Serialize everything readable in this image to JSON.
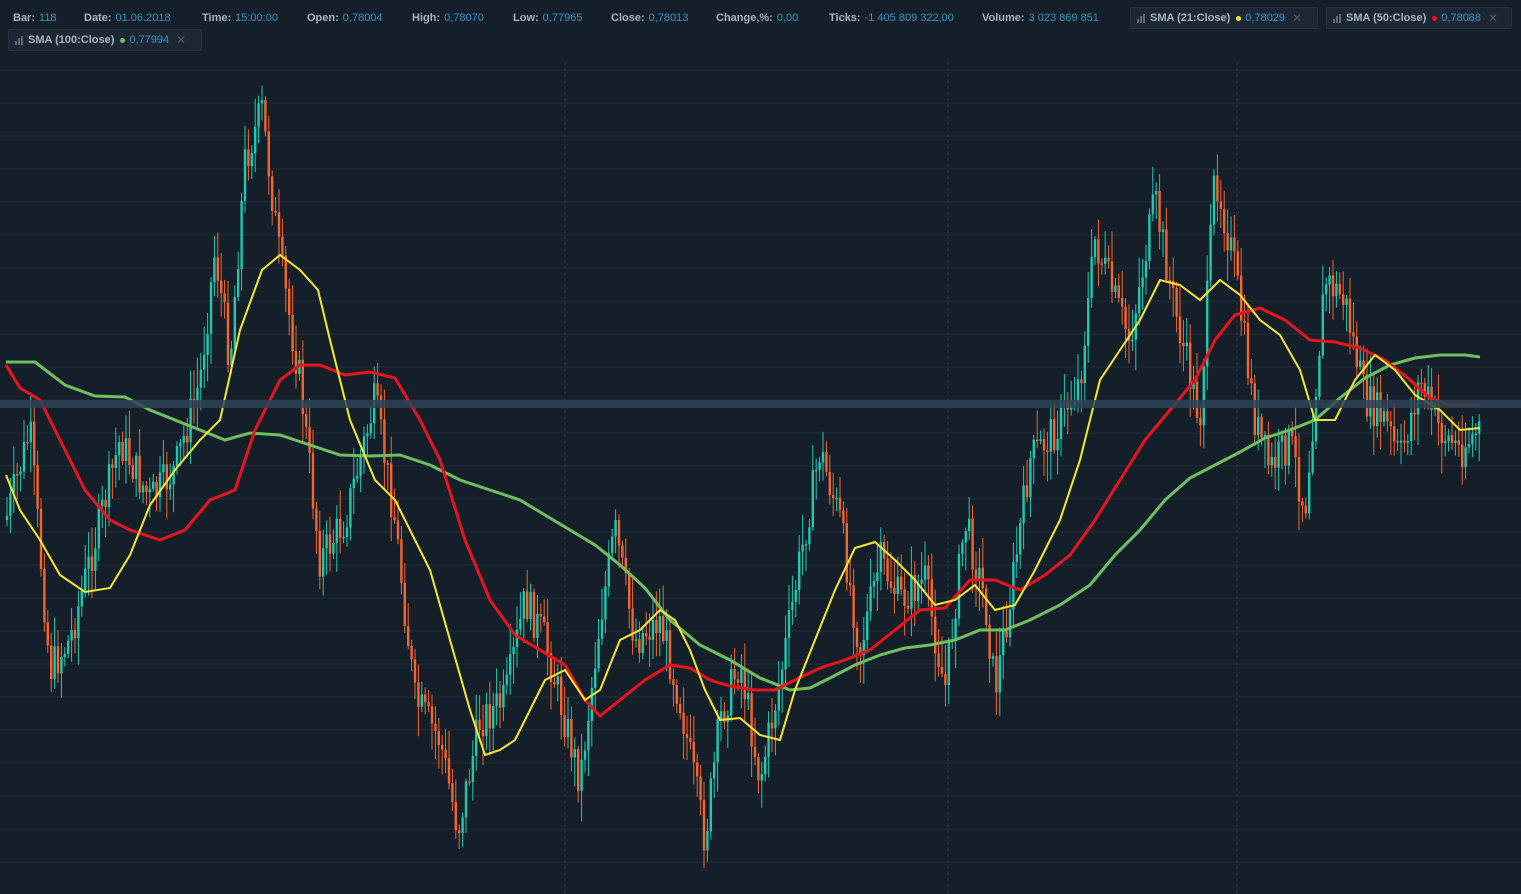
{
  "info": [
    {
      "label": "Bar:",
      "value": "118"
    },
    {
      "label": "Date:",
      "value": "01.06.2018"
    },
    {
      "label": "Time:",
      "value": "15:00:00"
    },
    {
      "label": "Open:",
      "value": "0,78004"
    },
    {
      "label": "High:",
      "value": "0,78070"
    },
    {
      "label": "Low:",
      "value": "0,77965"
    },
    {
      "label": "Close:",
      "value": "0,78013"
    },
    {
      "label": "Change,%:",
      "value": "0,00"
    },
    {
      "label": "Ticks:",
      "value": "-1 405 809 322,00"
    },
    {
      "label": "Volume:",
      "value": "3 023 869 851"
    }
  ],
  "indicators": [
    {
      "label": "SMA (21:Close)",
      "value": "0,78029",
      "color": "#f5e72f"
    },
    {
      "label": "SMA (50:Close)",
      "value": "0,78088",
      "color": "#e8141b"
    },
    {
      "label": "SMA (100:Close)",
      "value": "0,77994",
      "color": "#6fbf5e"
    }
  ],
  "close_icon": "close-icon",
  "indicator_icon": "bars-icon",
  "colors": {
    "background": "#151f2a",
    "up_candle": "#1fc9b0",
    "down_candle": "#f5652c",
    "grid": "#1e2c39",
    "sma21": "#f5e72f",
    "sma50": "#e8141b",
    "sma100": "#6fbf5e"
  }
}
